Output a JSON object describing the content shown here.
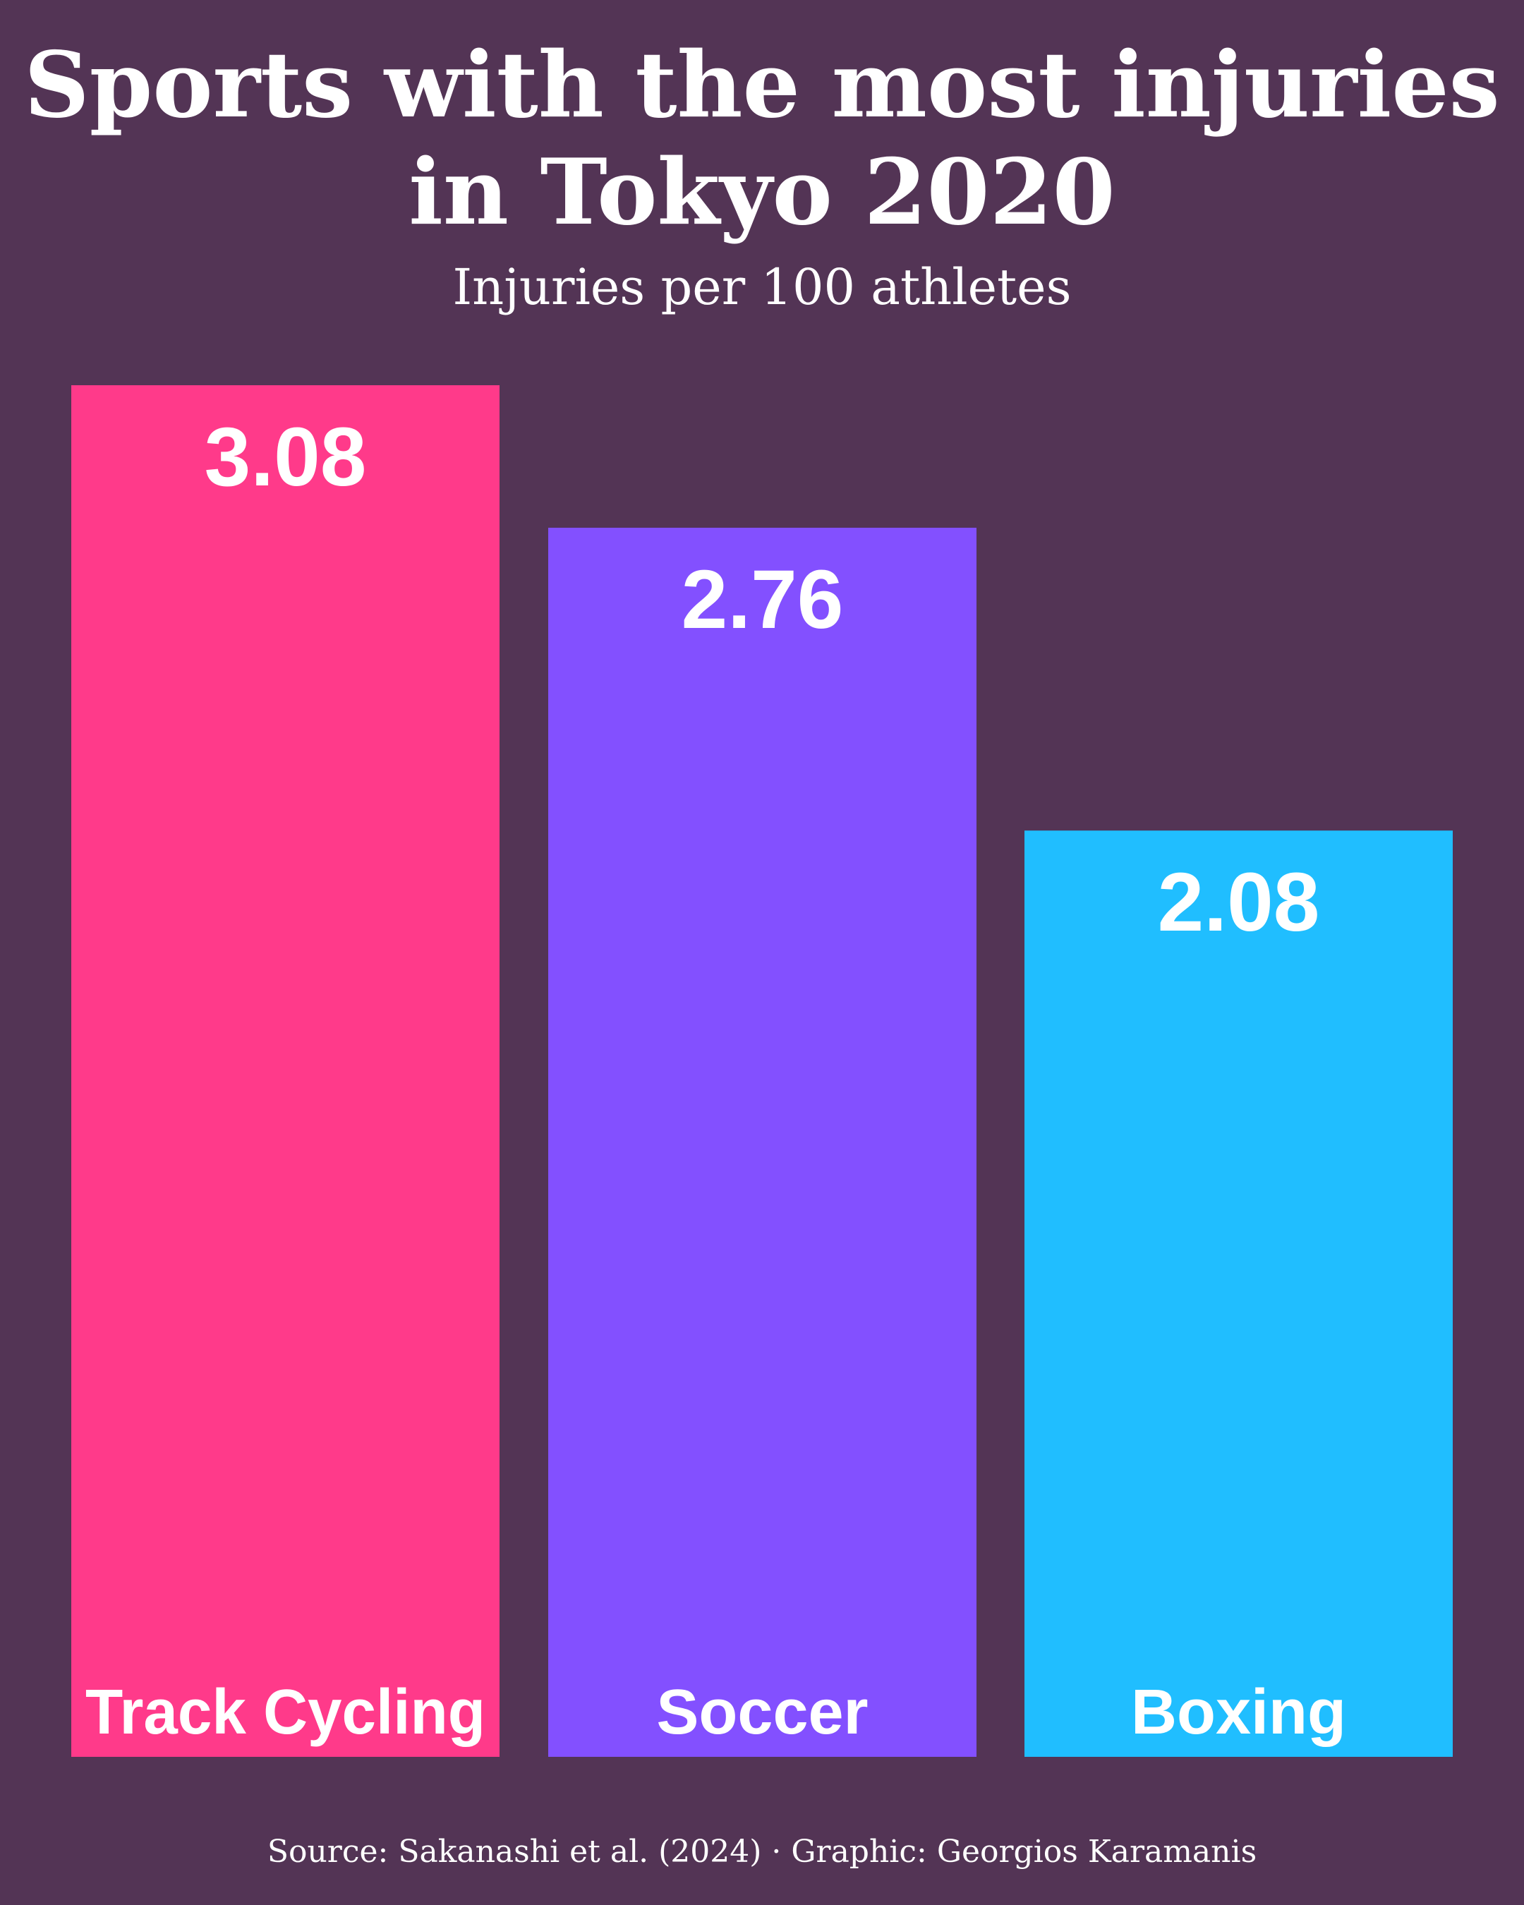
{
  "title_line1": "Sports with the most injuries",
  "title_line2": "in Tokyo 2020",
  "subtitle": "Injuries per 100 athletes",
  "source": "Source: Sakanashi et al. (2024) · Graphic: Georgios Karamanis",
  "colors": {
    "background": "#533455",
    "text": "#ffffff"
  },
  "chart_data": {
    "type": "bar",
    "categories": [
      "Track Cycling",
      "Soccer",
      "Boxing"
    ],
    "values": [
      3.08,
      2.76,
      2.08
    ],
    "value_labels": [
      "3.08",
      "2.76",
      "2.08"
    ],
    "bar_colors": [
      "#FF3A8A",
      "#8350FF",
      "#20BEFF"
    ],
    "title": "Sports with the most injuries in Tokyo 2020",
    "subtitle": "Injuries per 100 athletes",
    "xlabel": "",
    "ylabel": "",
    "ylim": [
      0,
      3.08
    ],
    "grid": false,
    "legend": "none"
  }
}
